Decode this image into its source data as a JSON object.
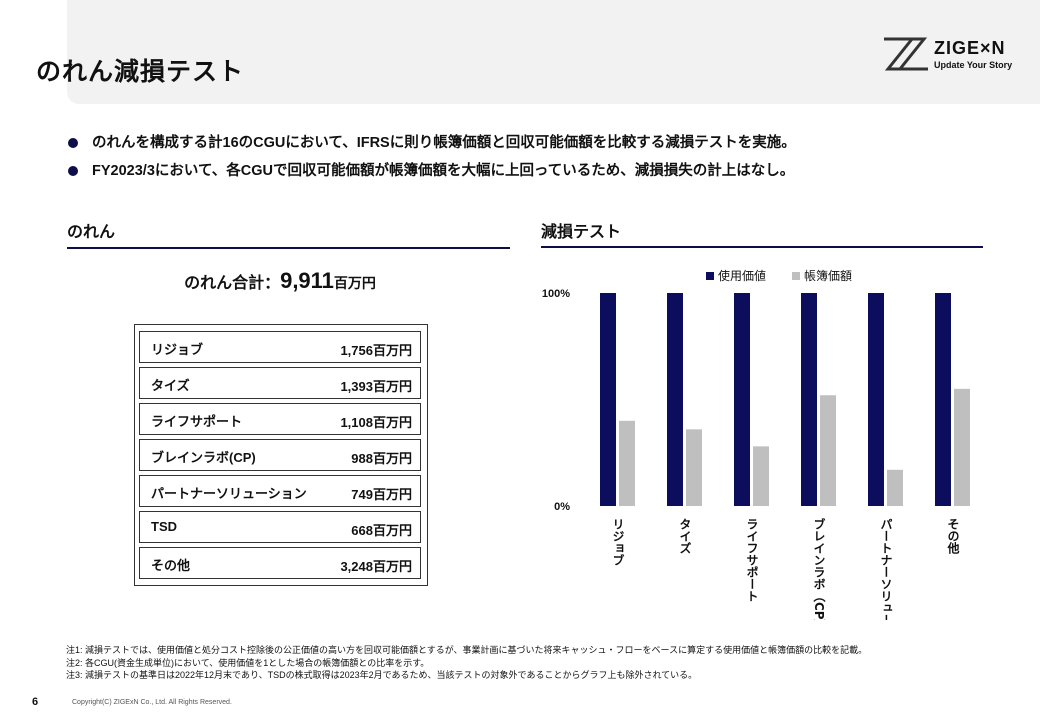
{
  "header": {
    "title": "のれん減損テスト",
    "logo": {
      "name": "ZIGE×N",
      "tagline": "Update Your Story"
    }
  },
  "bullets": [
    "のれんを構成する計16のCGUにおいて、IFRSに則り帳簿価額と回収可能価額を比較する減損テストを実施。",
    "FY2023/3において、各CGUで回収可能価額が帳簿価額を大幅に上回っているため、減損損失の計上はなし。"
  ],
  "goodwill": {
    "section_title": "のれん",
    "total_label": "のれん合計：",
    "total_value": "9,911",
    "total_unit": "百万円",
    "rows": [
      {
        "name": "リジョブ",
        "amount": "1,756百万円"
      },
      {
        "name": "タイズ",
        "amount": "1,393百万円"
      },
      {
        "name": "ライフサポート",
        "amount": "1,108百万円"
      },
      {
        "name": "ブレインラボ(CP)",
        "amount": "988百万円"
      },
      {
        "name": "パートナーソリューション",
        "amount": "749百万円"
      },
      {
        "name": "TSD",
        "amount": "668百万円"
      },
      {
        "name": "その他",
        "amount": "3,248百万円"
      }
    ]
  },
  "impairment": {
    "section_title": "減損テスト"
  },
  "chart_data": {
    "type": "bar",
    "title": "",
    "xlabel": "",
    "ylabel": "",
    "ylim": [
      0,
      100
    ],
    "y_tick_labels": [
      "0%",
      "100%"
    ],
    "legend_position": "top",
    "grid": false,
    "categories": [
      "リジョブ",
      "タイズ",
      "ライフサポート",
      "ブレインラボ（CP）",
      "パートナーソリューション",
      "その他"
    ],
    "series": [
      {
        "name": "使用価値",
        "color": "#0d0d5e",
        "values": [
          100,
          100,
          100,
          100,
          100,
          100
        ]
      },
      {
        "name": "帳簿価額",
        "color": "#bfbfbf",
        "values": [
          40,
          36,
          28,
          52,
          17,
          55
        ]
      }
    ]
  },
  "notes": [
    "注1: 減損テストでは、使用価値と処分コスト控除後の公正価値の高い方を回収可能価額とするが、事業計画に基づいた将来キャッシュ・フローをベースに算定する使用価値と帳簿価額の比較を記載。",
    "注2: 各CGU(資金生成単位)において、使用価値を1とした場合の帳簿価額との比率を示す。",
    "注3: 減損テストの基準日は2022年12月末であり、TSDの株式取得は2023年2月であるため、当該テストの対象外であることからグラフ上も除外されている。"
  ],
  "footer": {
    "page_number": "6",
    "copyright": "Copyright(C) ZIGExN Co., Ltd. All Rights Reserved."
  }
}
